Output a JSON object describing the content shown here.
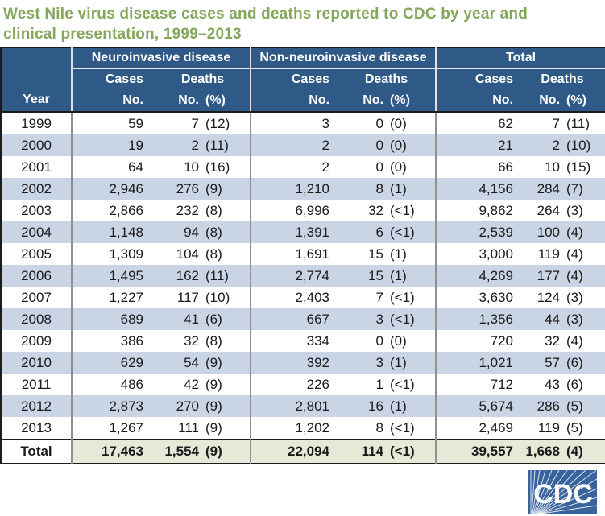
{
  "title": {
    "line1": "West Nile virus disease cases and deaths reported to CDC by year and",
    "line2": "clinical presentation, 1999–2013"
  },
  "colors": {
    "title_green": "#84a75c",
    "header_blue": "#2f5a87",
    "alt_row": "#c9d4e5",
    "total_row_bg": "#e6e9d8",
    "logo_blue": "#38639c"
  },
  "header": {
    "year": "Year",
    "groups": [
      {
        "label": "Neuroinvasive disease"
      },
      {
        "label": "Non-neuroinvasive disease"
      },
      {
        "label": "Total"
      }
    ],
    "cases": "Cases",
    "deaths": "Deaths",
    "no": "No.",
    "pct": "(%)"
  },
  "logo": {
    "text": "CDC"
  },
  "chart_data": {
    "type": "table",
    "title": "West Nile virus disease cases and deaths reported to CDC by year and clinical presentation, 1999–2013",
    "columns": [
      "Year",
      "Neuroinvasive disease Cases No.",
      "Neuroinvasive disease Deaths No. (%)",
      "Non-neuroinvasive disease Cases No.",
      "Non-neuroinvasive disease Deaths No. (%)",
      "Total Cases No.",
      "Total Deaths No. (%)"
    ],
    "rows": [
      {
        "year": "1999",
        "neuro": {
          "cases": "59",
          "deaths": "7",
          "pct": "(12)"
        },
        "non_neuro": {
          "cases": "3",
          "deaths": "0",
          "pct": "(0)"
        },
        "total": {
          "cases": "62",
          "deaths": "7",
          "pct": "(11)"
        }
      },
      {
        "year": "2000",
        "neuro": {
          "cases": "19",
          "deaths": "2",
          "pct": "(11)"
        },
        "non_neuro": {
          "cases": "2",
          "deaths": "0",
          "pct": "(0)"
        },
        "total": {
          "cases": "21",
          "deaths": "2",
          "pct": "(10)"
        }
      },
      {
        "year": "2001",
        "neuro": {
          "cases": "64",
          "deaths": "10",
          "pct": "(16)"
        },
        "non_neuro": {
          "cases": "2",
          "deaths": "0",
          "pct": "(0)"
        },
        "total": {
          "cases": "66",
          "deaths": "10",
          "pct": "(15)"
        }
      },
      {
        "year": "2002",
        "neuro": {
          "cases": "2,946",
          "deaths": "276",
          "pct": "(9)"
        },
        "non_neuro": {
          "cases": "1,210",
          "deaths": "8",
          "pct": "(1)"
        },
        "total": {
          "cases": "4,156",
          "deaths": "284",
          "pct": "(7)"
        }
      },
      {
        "year": "2003",
        "neuro": {
          "cases": "2,866",
          "deaths": "232",
          "pct": "(8)"
        },
        "non_neuro": {
          "cases": "6,996",
          "deaths": "32",
          "pct": "(<1)"
        },
        "total": {
          "cases": "9,862",
          "deaths": "264",
          "pct": "(3)"
        }
      },
      {
        "year": "2004",
        "neuro": {
          "cases": "1,148",
          "deaths": "94",
          "pct": "(8)"
        },
        "non_neuro": {
          "cases": "1,391",
          "deaths": "6",
          "pct": "(<1)"
        },
        "total": {
          "cases": "2,539",
          "deaths": "100",
          "pct": "(4)"
        }
      },
      {
        "year": "2005",
        "neuro": {
          "cases": "1,309",
          "deaths": "104",
          "pct": "(8)"
        },
        "non_neuro": {
          "cases": "1,691",
          "deaths": "15",
          "pct": "(1)"
        },
        "total": {
          "cases": "3,000",
          "deaths": "119",
          "pct": "(4)"
        }
      },
      {
        "year": "2006",
        "neuro": {
          "cases": "1,495",
          "deaths": "162",
          "pct": "(11)"
        },
        "non_neuro": {
          "cases": "2,774",
          "deaths": "15",
          "pct": "(1)"
        },
        "total": {
          "cases": "4,269",
          "deaths": "177",
          "pct": "(4)"
        }
      },
      {
        "year": "2007",
        "neuro": {
          "cases": "1,227",
          "deaths": "117",
          "pct": "(10)"
        },
        "non_neuro": {
          "cases": "2,403",
          "deaths": "7",
          "pct": "(<1)"
        },
        "total": {
          "cases": "3,630",
          "deaths": "124",
          "pct": "(3)"
        }
      },
      {
        "year": "2008",
        "neuro": {
          "cases": "689",
          "deaths": "41",
          "pct": "(6)"
        },
        "non_neuro": {
          "cases": "667",
          "deaths": "3",
          "pct": "(<1)"
        },
        "total": {
          "cases": "1,356",
          "deaths": "44",
          "pct": "(3)"
        }
      },
      {
        "year": "2009",
        "neuro": {
          "cases": "386",
          "deaths": "32",
          "pct": "(8)"
        },
        "non_neuro": {
          "cases": "334",
          "deaths": "0",
          "pct": "(0)"
        },
        "total": {
          "cases": "720",
          "deaths": "32",
          "pct": "(4)"
        }
      },
      {
        "year": "2010",
        "neuro": {
          "cases": "629",
          "deaths": "54",
          "pct": "(9)"
        },
        "non_neuro": {
          "cases": "392",
          "deaths": "3",
          "pct": "(1)"
        },
        "total": {
          "cases": "1,021",
          "deaths": "57",
          "pct": "(6)"
        }
      },
      {
        "year": "2011",
        "neuro": {
          "cases": "486",
          "deaths": "42",
          "pct": "(9)"
        },
        "non_neuro": {
          "cases": "226",
          "deaths": "1",
          "pct": "(<1)"
        },
        "total": {
          "cases": "712",
          "deaths": "43",
          "pct": "(6)"
        }
      },
      {
        "year": "2012",
        "neuro": {
          "cases": "2,873",
          "deaths": "270",
          "pct": "(9)"
        },
        "non_neuro": {
          "cases": "2,801",
          "deaths": "16",
          "pct": "(1)"
        },
        "total": {
          "cases": "5,674",
          "deaths": "286",
          "pct": "(5)"
        }
      },
      {
        "year": "2013",
        "neuro": {
          "cases": "1,267",
          "deaths": "111",
          "pct": "(9)"
        },
        "non_neuro": {
          "cases": "1,202",
          "deaths": "8",
          "pct": "(<1)"
        },
        "total": {
          "cases": "2,469",
          "deaths": "119",
          "pct": "(5)"
        }
      }
    ],
    "total_row": {
      "label": "Total",
      "neuro": {
        "cases": "17,463",
        "deaths": "1,554",
        "pct": "(9)"
      },
      "non_neuro": {
        "cases": "22,094",
        "deaths": "114",
        "pct": "(<1)"
      },
      "total": {
        "cases": "39,557",
        "deaths": "1,668",
        "pct": "(4)"
      }
    }
  }
}
